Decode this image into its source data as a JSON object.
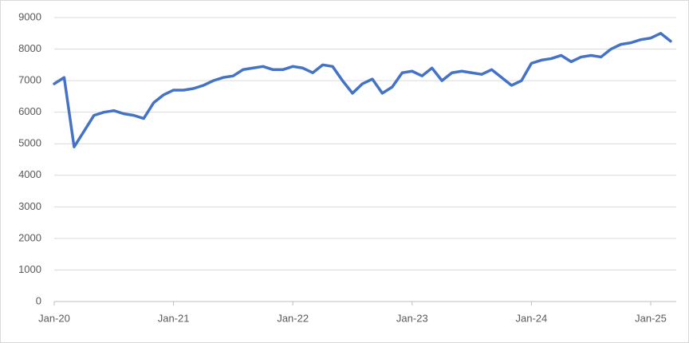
{
  "chart_data": {
    "type": "line",
    "categories": [
      "Jan-20",
      null,
      null,
      null,
      null,
      null,
      null,
      null,
      null,
      null,
      null,
      null,
      "Jan-21",
      null,
      null,
      null,
      null,
      null,
      null,
      null,
      null,
      null,
      null,
      null,
      "Jan-22",
      null,
      null,
      null,
      null,
      null,
      null,
      null,
      null,
      null,
      null,
      null,
      "Jan-23",
      null,
      null,
      null,
      null,
      null,
      null,
      null,
      null,
      null,
      null,
      null,
      "Jan-24",
      null,
      null,
      null,
      null,
      null,
      null,
      null,
      null,
      null,
      null,
      null,
      "Jan-25",
      null,
      null
    ],
    "values": [
      6900,
      7100,
      4900,
      5400,
      5900,
      6000,
      6050,
      5950,
      5900,
      5800,
      6300,
      6550,
      6700,
      6700,
      6750,
      6850,
      7000,
      7100,
      7150,
      7350,
      7400,
      7450,
      7350,
      7350,
      7450,
      7400,
      7250,
      7500,
      7450,
      7000,
      6600,
      6900,
      7050,
      6600,
      6800,
      7250,
      7300,
      7150,
      7400,
      7000,
      7250,
      7300,
      7250,
      7200,
      7350,
      7100,
      6850,
      7000,
      7550,
      7650,
      7700,
      7800,
      7600,
      7750,
      7800,
      7750,
      8000,
      8150,
      8200,
      8300,
      8350,
      8500,
      8250
    ],
    "color": "#4472c4",
    "ylim": [
      0,
      9000
    ],
    "yticks": [
      0,
      1000,
      2000,
      3000,
      4000,
      5000,
      6000,
      7000,
      8000,
      9000
    ],
    "grid": true
  }
}
